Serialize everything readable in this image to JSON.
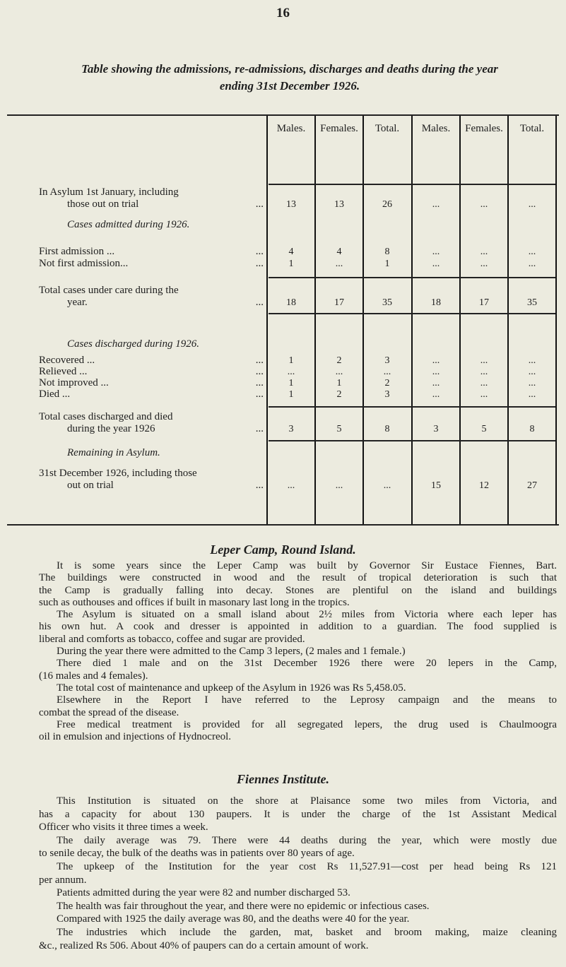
{
  "page_number": "16",
  "title": {
    "line1": "Table showing the admissions, re-admissions, discharges and deaths during the year",
    "line2": "ending 31st December 1926."
  },
  "table": {
    "headers": [
      "Males.",
      "Females.",
      "Total.",
      "Males.",
      "Females.",
      "Total."
    ],
    "rows": [
      {
        "label": [
          "In Asylum 1st January, including",
          "those out on trial"
        ],
        "values": [
          "13",
          "13",
          "26",
          "...",
          "...",
          "..."
        ]
      },
      {
        "section": "Cases admitted during 1926."
      },
      {
        "label": [
          "First admission    ..."
        ],
        "values": [
          "4",
          "4",
          "8",
          "...",
          "...",
          "..."
        ]
      },
      {
        "label": [
          "Not first admission..."
        ],
        "values": [
          "1",
          "...",
          "1",
          "...",
          "...",
          "..."
        ]
      },
      {
        "label": [
          "Total cases under care during the",
          "year."
        ],
        "values": [
          "18",
          "17",
          "35",
          "18",
          "17",
          "35"
        ]
      },
      {
        "section": "Cases discharged during 1926."
      },
      {
        "label": [
          "Recovered    ..."
        ],
        "values": [
          "1",
          "2",
          "3",
          "...",
          "...",
          "..."
        ]
      },
      {
        "label": [
          "Relieved    ..."
        ],
        "values": [
          "...",
          "...",
          "...",
          "...",
          "...",
          "..."
        ]
      },
      {
        "label": [
          "Not improved    ..."
        ],
        "values": [
          "1",
          "1",
          "2",
          "...",
          "...",
          "..."
        ]
      },
      {
        "label": [
          "Died    ..."
        ],
        "values": [
          "1",
          "2",
          "3",
          "...",
          "...",
          "..."
        ]
      },
      {
        "label": [
          "Total cases discharged and died",
          "during the year 1926"
        ],
        "values": [
          "3",
          "5",
          "8",
          "3",
          "5",
          "8"
        ]
      },
      {
        "section": "Remaining in Asylum."
      },
      {
        "label": [
          "31st December 1926, including those",
          "out on trial"
        ],
        "values": [
          "...",
          "...",
          "...",
          "15",
          "12",
          "27"
        ]
      }
    ]
  },
  "leper_camp": {
    "heading": "Leper Camp, Round Island.",
    "paragraphs": [
      [
        "It is some years since the Leper Camp was built by Governor Sir Eustace Fiennes, Bart.",
        "The buildings were constructed in wood and the result of tropical deterioration is such that",
        "the Camp is gradually falling into decay. Stones are plentiful on the island and buildings",
        "such as outhouses and offices if built in masonary last long in the tropics."
      ],
      [
        "The Asylum is situated on a small island about 2½ miles from Victoria where each leper has",
        "his own hut. A cook and dresser is appointed in addition to a guardian. The food supplied is",
        "liberal and comforts as tobacco, coffee and sugar are provided."
      ],
      [
        "During the year there were admitted to the Camp 3 lepers, (2 males and 1 female.)"
      ],
      [
        "There died 1 male and on the 31st December 1926 there were 20 lepers in the Camp,",
        "(16 males and 4 females)."
      ],
      [
        "The total cost of maintenance and upkeep of the Asylum in 1926 was Rs 5,458.05."
      ],
      [
        "Elsewhere in the Report I have referred to the Leprosy campaign and the means to",
        "combat the spread of the disease."
      ],
      [
        "Free medical treatment is provided for all segregated lepers, the drug used is Chaulmoogra",
        "oil in emulsion and injections of Hydnocreol."
      ]
    ]
  },
  "fiennes": {
    "heading": "Fiennes Institute.",
    "paragraphs": [
      [
        "This Institution is situated on the shore at Plaisance some two miles from Victoria, and",
        "has a capacity for about 130 paupers. It is under the charge of the 1st Assistant Medical",
        "Officer who visits it three times a week."
      ],
      [
        "The daily average was 79. There were 44 deaths during the year, which were mostly due",
        "to senile decay, the bulk of the deaths was in patients over 80 years of age."
      ],
      [
        "The upkeep of the Institution for the year cost Rs 11,527.91—cost per head being Rs 121",
        "per annum."
      ],
      [
        "Patients admitted during the year were 82 and number discharged 53."
      ],
      [
        "The health was fair throughout the year, and there were no epidemic or infectious cases."
      ],
      [
        "Compared with 1925 the daily average was 80, and the deaths were 40 for the year."
      ],
      [
        "The industries which include the garden, mat, basket and broom making, maize cleaning",
        "&c., realized Rs 506. About 40% of paupers can do a certain amount of work."
      ]
    ]
  }
}
